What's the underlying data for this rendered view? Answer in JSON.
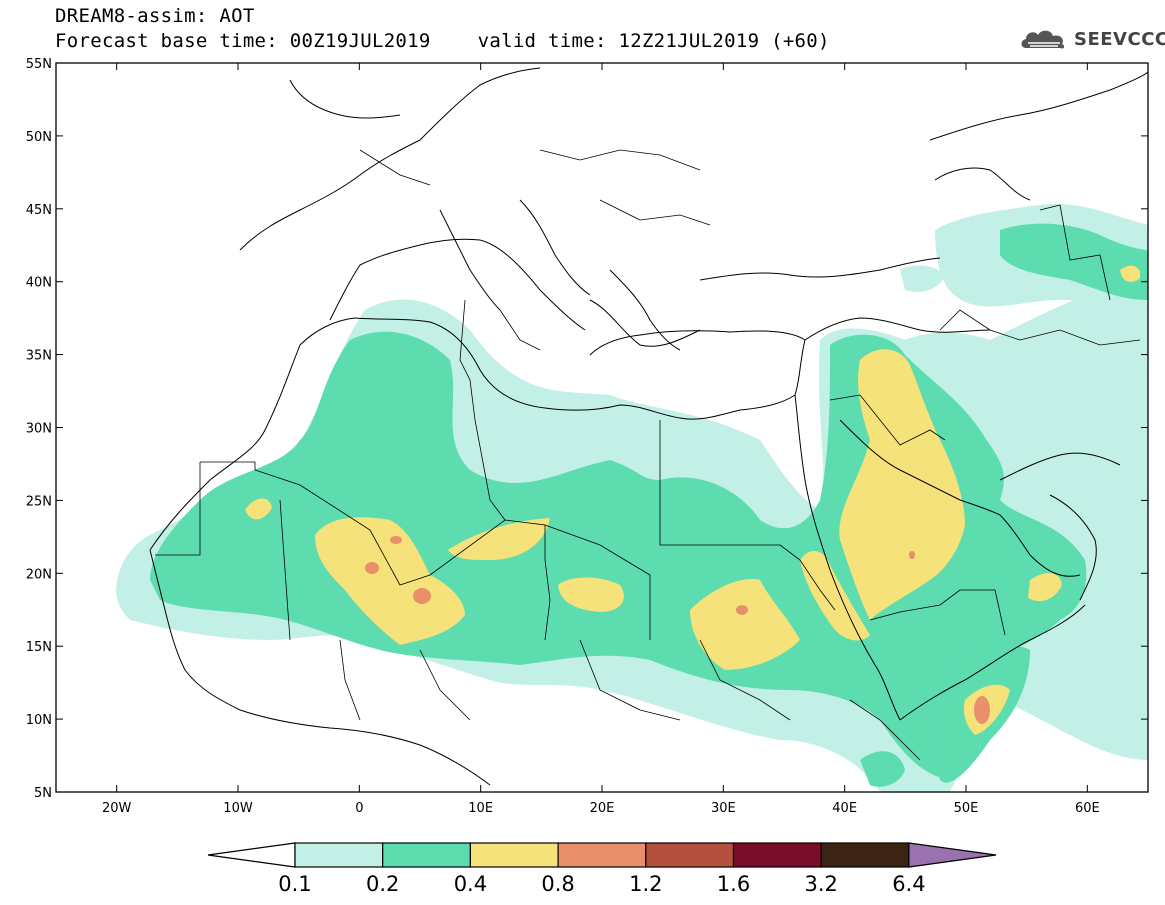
{
  "header": {
    "line1": "DREAM8-assim: AOT",
    "line2": "Forecast base time: 00Z19JUL2019    valid time: 12Z21JUL2019 (+60)"
  },
  "logo": {
    "text": "SEEVCCC",
    "icon": "cloud-icon"
  },
  "map": {
    "lon_range": [
      -25,
      65
    ],
    "lat_range": [
      5,
      55
    ],
    "lat_ticks": [
      "55N",
      "50N",
      "45N",
      "40N",
      "35N",
      "30N",
      "25N",
      "20N",
      "15N",
      "10N",
      "5N"
    ],
    "lon_ticks": [
      "20W",
      "10W",
      "0",
      "10E",
      "20E",
      "30E",
      "40E",
      "50E",
      "60E"
    ]
  },
  "colorbar": {
    "labels": [
      "0.1",
      "0.2",
      "0.4",
      "0.8",
      "1.2",
      "1.6",
      "3.2",
      "6.4"
    ],
    "colors": {
      "below": "#ffffff",
      "bins": [
        "#c2f0e6",
        "#5ddcb0",
        "#f5e27a",
        "#e8906a",
        "#b5503e",
        "#7a0d2a",
        "#3b2414"
      ],
      "above": "#9a72b0"
    }
  },
  "palette": {
    "aot_0_1": "#c2f0e6",
    "aot_0_2": "#5ddcb0",
    "aot_0_4": "#f5e27a",
    "aot_0_8": "#e8906a"
  }
}
